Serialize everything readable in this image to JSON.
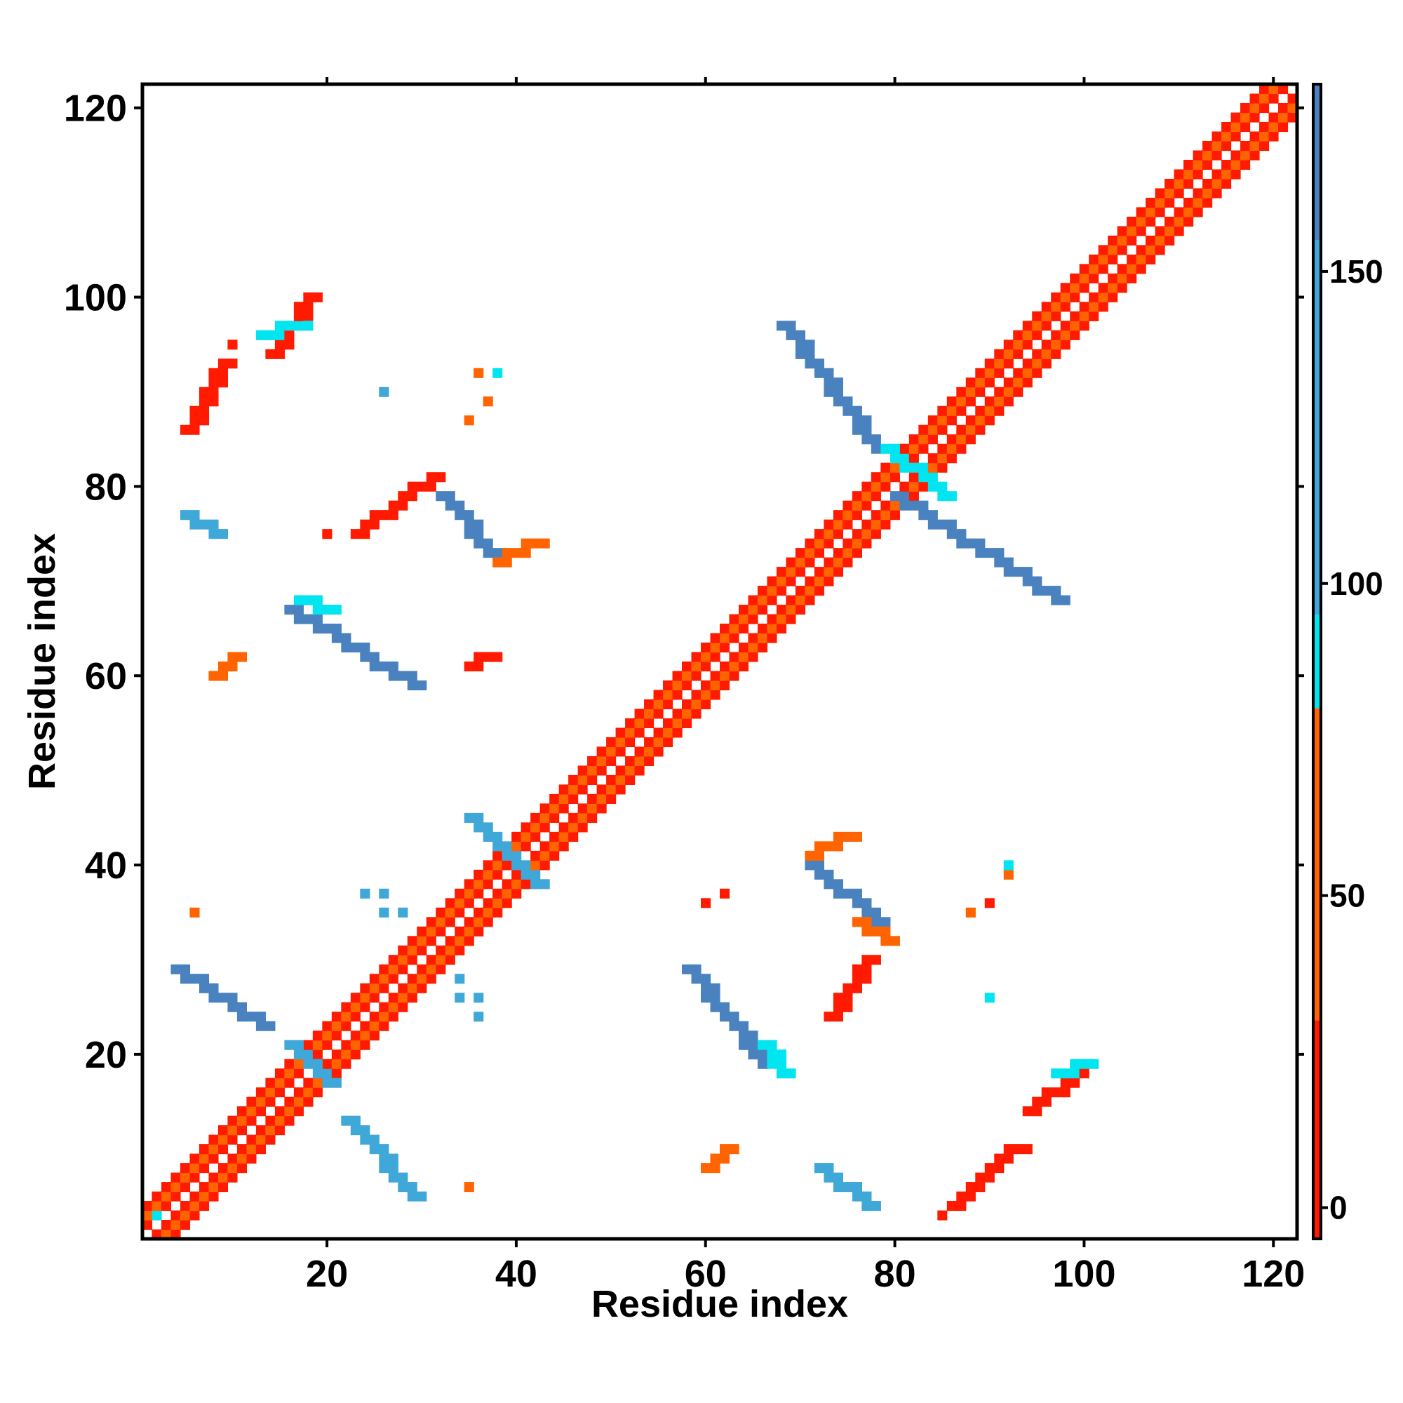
{
  "chart_data": {
    "type": "heatmap",
    "title": "",
    "xlabel": "Residue index",
    "ylabel": "Residue index",
    "xlim": [
      1,
      122
    ],
    "ylim": [
      1,
      122
    ],
    "x_ticks": [
      20,
      40,
      60,
      80,
      100,
      120
    ],
    "y_ticks": [
      20,
      40,
      60,
      80,
      100,
      120
    ],
    "colorbar": {
      "ticks": [
        0,
        50,
        100,
        150
      ],
      "range": [
        -5,
        180
      ],
      "bins": [
        {
          "from": -5,
          "to": 30,
          "color": "#ff1a00"
        },
        {
          "from": 30,
          "to": 80,
          "color": "#ff6400"
        },
        {
          "from": 80,
          "to": 95,
          "color": "#00e5f0"
        },
        {
          "from": 95,
          "to": 155,
          "color": "#3fa8d8"
        },
        {
          "from": 155,
          "to": 180,
          "color": "#4a82c0"
        }
      ],
      "empty_color": "#ffffff"
    },
    "legend": "colorbar-right",
    "grid": false,
    "value_note": "cells are pairwise residue contacts; value shown by color",
    "diagonal_band": {
      "from": 1,
      "to": 122,
      "offsets": [
        1,
        2,
        3
      ]
    },
    "segments": [
      {
        "x": [
          5,
          9
        ],
        "y": [
          86,
          93
        ],
        "value": 20
      },
      {
        "x": [
          14,
          18
        ],
        "y": [
          94,
          100
        ],
        "value": 20
      },
      {
        "x": [
          13,
          17
        ],
        "y": [
          96,
          97
        ],
        "value": 90
      },
      {
        "x": [
          5,
          8
        ],
        "y": [
          77,
          75
        ],
        "value": 110
      },
      {
        "x": [
          23,
          31
        ],
        "y": [
          75,
          81
        ],
        "value": 20
      },
      {
        "x": [
          32,
          38
        ],
        "y": [
          79,
          72
        ],
        "value": 165
      },
      {
        "x": [
          38,
          42
        ],
        "y": [
          72,
          74
        ],
        "value": 60
      },
      {
        "x": [
          16,
          29
        ],
        "y": [
          67,
          59
        ],
        "value": 165
      },
      {
        "x": [
          17,
          20
        ],
        "y": [
          68,
          67
        ],
        "value": 90
      },
      {
        "x": [
          8,
          10
        ],
        "y": [
          60,
          62
        ],
        "value": 60
      },
      {
        "x": [
          35,
          37
        ],
        "y": [
          61,
          62
        ],
        "value": 20
      },
      {
        "x": [
          68,
          78
        ],
        "y": [
          97,
          84
        ],
        "value": 165
      },
      {
        "x": [
          80,
          97
        ],
        "y": [
          79,
          68
        ],
        "value": 165
      },
      {
        "x": [
          79,
          85
        ],
        "y": [
          84,
          79
        ],
        "value": 90
      },
      {
        "x": [
          35,
          42
        ],
        "y": [
          45,
          38
        ],
        "value": 130
      },
      {
        "x": [
          4,
          13
        ],
        "y": [
          29,
          23
        ],
        "value": 165
      },
      {
        "x": [
          16,
          20
        ],
        "y": [
          21,
          17
        ],
        "value": 130
      },
      {
        "x": [
          22,
          29
        ],
        "y": [
          13,
          5
        ],
        "value": 130
      },
      {
        "x": [
          58,
          66
        ],
        "y": [
          29,
          19
        ],
        "value": 165
      },
      {
        "x": [
          66,
          68
        ],
        "y": [
          21,
          18
        ],
        "value": 90
      },
      {
        "x": [
          71,
          78
        ],
        "y": [
          40,
          34
        ],
        "value": 165
      },
      {
        "x": [
          76,
          79
        ],
        "y": [
          34,
          32
        ],
        "value": 60
      },
      {
        "x": [
          71,
          75
        ],
        "y": [
          41,
          43
        ],
        "value": 60
      },
      {
        "x": [
          73,
          77
        ],
        "y": [
          24,
          30
        ],
        "value": 20
      },
      {
        "x": [
          94,
          99
        ],
        "y": [
          14,
          18
        ],
        "value": 20
      },
      {
        "x": [
          97,
          100
        ],
        "y": [
          18,
          19
        ],
        "value": 90
      },
      {
        "x": [
          86,
          92
        ],
        "y": [
          4,
          10
        ],
        "value": 20
      },
      {
        "x": [
          72,
          77
        ],
        "y": [
          8,
          4
        ],
        "value": 110
      },
      {
        "x": [
          60,
          62
        ],
        "y": [
          8,
          10
        ],
        "value": 60
      }
    ],
    "points": [
      {
        "x": 2,
        "y": 3,
        "value": 90
      },
      {
        "x": 10,
        "y": 95,
        "value": 20
      },
      {
        "x": 26,
        "y": 90,
        "value": 130
      },
      {
        "x": 36,
        "y": 92,
        "value": 60
      },
      {
        "x": 38,
        "y": 92,
        "value": 90
      },
      {
        "x": 37,
        "y": 89,
        "value": 60
      },
      {
        "x": 35,
        "y": 87,
        "value": 60
      },
      {
        "x": 20,
        "y": 75,
        "value": 20
      },
      {
        "x": 34,
        "y": 28,
        "value": 130
      },
      {
        "x": 34,
        "y": 26,
        "value": 130
      },
      {
        "x": 36,
        "y": 26,
        "value": 130
      },
      {
        "x": 36,
        "y": 24,
        "value": 130
      },
      {
        "x": 24,
        "y": 37,
        "value": 130
      },
      {
        "x": 26,
        "y": 37,
        "value": 130
      },
      {
        "x": 26,
        "y": 35,
        "value": 130
      },
      {
        "x": 28,
        "y": 35,
        "value": 130
      },
      {
        "x": 6,
        "y": 35,
        "value": 60
      },
      {
        "x": 35,
        "y": 6,
        "value": 60
      },
      {
        "x": 60,
        "y": 36,
        "value": 20
      },
      {
        "x": 62,
        "y": 37,
        "value": 20
      },
      {
        "x": 88,
        "y": 35,
        "value": 60
      },
      {
        "x": 90,
        "y": 36,
        "value": 20
      },
      {
        "x": 92,
        "y": 39,
        "value": 60
      },
      {
        "x": 92,
        "y": 40,
        "value": 90
      },
      {
        "x": 90,
        "y": 26,
        "value": 90
      },
      {
        "x": 92,
        "y": 10,
        "value": 20
      },
      {
        "x": 94,
        "y": 10,
        "value": 20
      },
      {
        "x": 85,
        "y": 3,
        "value": 20
      }
    ]
  }
}
